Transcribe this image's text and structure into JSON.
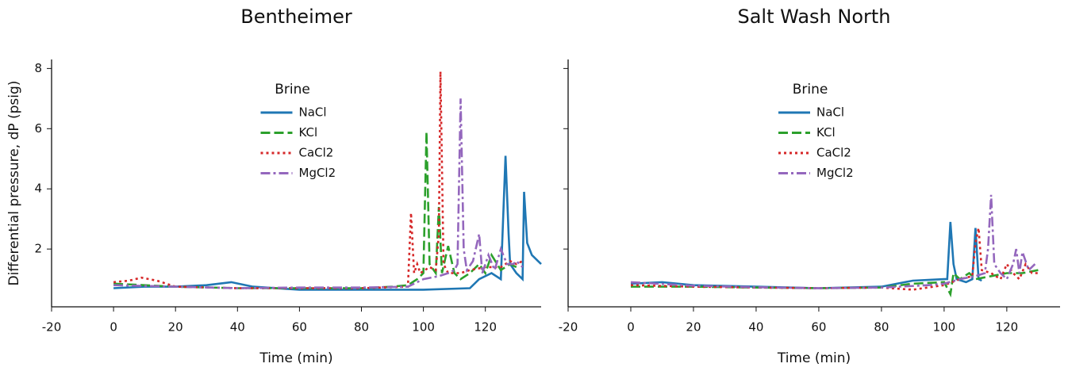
{
  "chart_data": [
    {
      "type": "line",
      "title": "Bentheimer",
      "xlabel": "Time (min)",
      "ylabel": "Differential pressure, dP (psig)",
      "xlim": [
        -20,
        138
      ],
      "xticks": [
        -20,
        0,
        20,
        40,
        60,
        80,
        100,
        120
      ],
      "ylim": [
        0.08,
        8.3
      ],
      "yticks": [
        2,
        4,
        6,
        8
      ],
      "show_ytick_labels": true,
      "legend_title": "Brine",
      "legend": "upper center",
      "series": [
        {
          "name": "NaCl",
          "color": "#1f77b4",
          "linestyle": "solid",
          "x": [
            0,
            10,
            20,
            30,
            38,
            45,
            60,
            80,
            100,
            115,
            118,
            122,
            125,
            126.5,
            127.5,
            128,
            130,
            132,
            132.5,
            133.5,
            135,
            137,
            138
          ],
          "values": [
            0.7,
            0.75,
            0.75,
            0.8,
            0.9,
            0.75,
            0.65,
            0.65,
            0.65,
            0.7,
            1.0,
            1.2,
            1.0,
            5.1,
            2.5,
            1.5,
            1.2,
            1.0,
            3.9,
            2.2,
            1.8,
            1.6,
            1.5
          ]
        },
        {
          "name": "KCl",
          "color": "#2ca02c",
          "linestyle": "dashed",
          "x": [
            0,
            20,
            40,
            60,
            80,
            90,
            95,
            98,
            100,
            101,
            102,
            104,
            105,
            106,
            108,
            110,
            112,
            115,
            118,
            120,
            122,
            125,
            128,
            130
          ],
          "values": [
            0.85,
            0.75,
            0.7,
            0.7,
            0.7,
            0.75,
            0.8,
            1.0,
            1.2,
            5.9,
            1.5,
            1.2,
            3.4,
            1.2,
            2.1,
            1.2,
            1.0,
            1.2,
            1.5,
            1.2,
            1.8,
            1.3,
            1.5,
            1.4
          ]
        },
        {
          "name": "CaCl2",
          "color": "#d62728",
          "linestyle": "dotted",
          "x": [
            0,
            5,
            9,
            14,
            20,
            40,
            60,
            80,
            95,
            96,
            97,
            98,
            99,
            102,
            104,
            105,
            105.5,
            106.5,
            108,
            112,
            115,
            120,
            125,
            128,
            130,
            132
          ],
          "values": [
            0.9,
            0.95,
            1.05,
            0.95,
            0.75,
            0.7,
            0.7,
            0.7,
            0.75,
            3.2,
            1.2,
            1.5,
            1.2,
            1.4,
            1.3,
            2.5,
            7.9,
            1.5,
            1.2,
            1.2,
            1.3,
            1.4,
            1.4,
            1.6,
            1.5,
            1.6
          ]
        },
        {
          "name": "MgCl2",
          "color": "#9467bd",
          "linestyle": "dashdot",
          "x": [
            0,
            20,
            40,
            60,
            80,
            95,
            100,
            105,
            108,
            110,
            111,
            112,
            113,
            114,
            116,
            118,
            119,
            121,
            123,
            125,
            127,
            129,
            130,
            132
          ],
          "values": [
            0.8,
            0.75,
            0.7,
            0.72,
            0.72,
            0.75,
            1.0,
            1.1,
            1.2,
            1.3,
            1.5,
            7.0,
            2.0,
            1.3,
            1.6,
            2.5,
            1.2,
            1.8,
            1.3,
            2.0,
            1.5,
            1.5,
            1.6,
            1.4
          ]
        }
      ]
    },
    {
      "type": "line",
      "title": "Salt Wash North",
      "xlabel": "Time (min)",
      "xlim": [
        -20,
        137
      ],
      "xticks": [
        -20,
        0,
        20,
        40,
        60,
        80,
        100,
        120
      ],
      "ylim": [
        0.08,
        8.3
      ],
      "yticks": [
        2,
        4,
        6,
        8
      ],
      "show_ytick_labels": false,
      "legend_title": "Brine",
      "legend": "upper center",
      "series": [
        {
          "name": "NaCl",
          "color": "#1f77b4",
          "linestyle": "solid",
          "x": [
            0,
            10,
            20,
            40,
            60,
            80,
            90,
            100,
            101,
            102,
            103,
            104,
            107,
            109,
            110,
            111,
            112
          ],
          "values": [
            0.85,
            0.9,
            0.8,
            0.75,
            0.7,
            0.75,
            0.95,
            1.0,
            1.0,
            2.9,
            1.5,
            1.0,
            0.9,
            1.0,
            2.7,
            1.0,
            0.95
          ]
        },
        {
          "name": "KCl",
          "color": "#2ca02c",
          "linestyle": "dashed",
          "x": [
            0,
            20,
            40,
            60,
            80,
            90,
            100,
            102,
            103,
            105,
            108,
            110,
            115,
            120,
            125,
            130
          ],
          "values": [
            0.75,
            0.75,
            0.72,
            0.7,
            0.72,
            0.85,
            0.9,
            0.5,
            1.2,
            1.0,
            1.2,
            1.0,
            1.1,
            1.2,
            1.2,
            1.3
          ]
        },
        {
          "name": "CaCl2",
          "color": "#d62728",
          "linestyle": "dotted",
          "x": [
            0,
            20,
            40,
            60,
            80,
            90,
            100,
            105,
            109,
            110,
            111,
            112,
            115,
            118,
            120,
            122,
            124,
            126,
            128,
            130
          ],
          "values": [
            0.8,
            0.75,
            0.72,
            0.7,
            0.72,
            0.65,
            0.8,
            1.0,
            1.1,
            2.2,
            2.7,
            1.3,
            1.2,
            1.0,
            1.5,
            1.2,
            1.0,
            1.5,
            1.2,
            1.2
          ]
        },
        {
          "name": "MgCl2",
          "color": "#9467bd",
          "linestyle": "dashdot",
          "x": [
            0,
            20,
            40,
            60,
            80,
            95,
            100,
            105,
            110,
            113,
            114,
            115,
            116,
            118,
            120,
            122,
            123,
            124,
            125,
            127,
            129
          ],
          "values": [
            0.9,
            0.78,
            0.73,
            0.7,
            0.72,
            0.8,
            0.85,
            1.0,
            1.1,
            1.2,
            2.0,
            3.8,
            1.5,
            1.2,
            1.0,
            1.5,
            2.0,
            1.2,
            1.9,
            1.3,
            1.5
          ]
        }
      ]
    }
  ]
}
